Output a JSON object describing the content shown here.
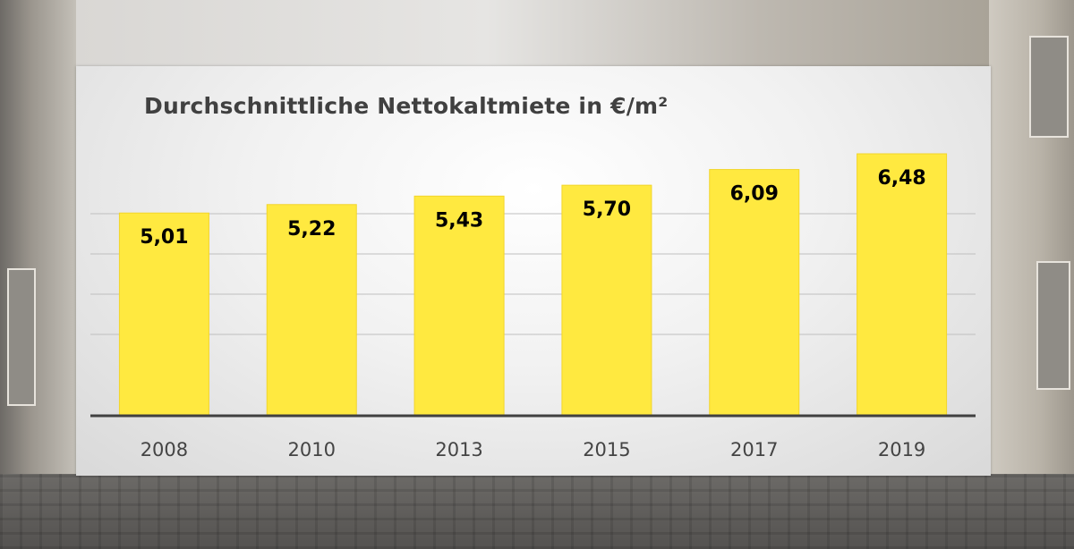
{
  "chart_data": {
    "type": "bar",
    "title": "Durchschnittliche Nettokaltmiete in €/m²",
    "categories": [
      "2008",
      "2010",
      "2013",
      "2015",
      "2017",
      "2019"
    ],
    "values": [
      5.01,
      5.22,
      5.43,
      5.7,
      6.09,
      6.48
    ],
    "data_labels": [
      "5,01",
      "5,22",
      "5,43",
      "5,70",
      "6,09",
      "6,48"
    ],
    "ylim": [
      0,
      6.48
    ],
    "grid": true,
    "legend": "none",
    "colors": {
      "bar": "#FFE940",
      "bar_border": "#F2D52A",
      "grid": "#BFBFBF",
      "axis": "#404040"
    }
  }
}
